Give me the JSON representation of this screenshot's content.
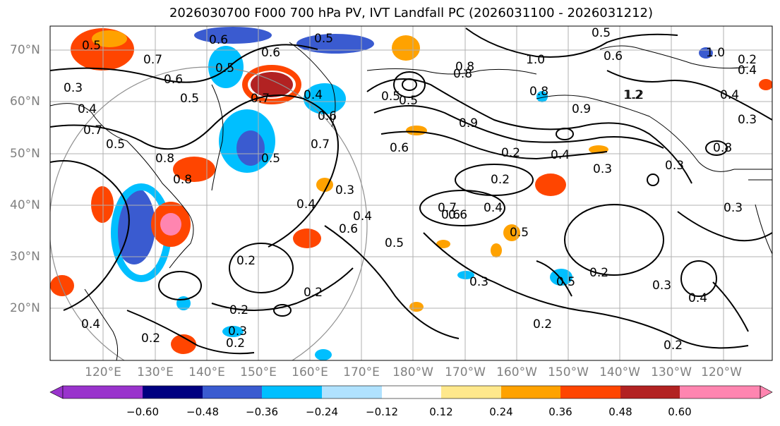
{
  "title": "2026030700 F000 700 hPa PV, IVT Landfall PC (2026031100 - 2026031212)",
  "lat_labels": [
    "70°N",
    "60°N",
    "50°N",
    "40°N",
    "30°N",
    "20°N"
  ],
  "lon_labels": [
    "120°E",
    "130°E",
    "140°E",
    "150°E",
    "160°E",
    "170°E",
    "180°W",
    "170°W",
    "160°W",
    "150°W",
    "140°W",
    "130°W",
    "120°W"
  ],
  "colorbar": {
    "ticks": [
      "−0.60",
      "−0.48",
      "−0.36",
      "−0.24",
      "−0.12",
      "0.12",
      "0.24",
      "0.36",
      "0.48",
      "0.60"
    ],
    "colors": [
      "#9933cc",
      "#000080",
      "#3a5bd0",
      "#00bfff",
      "#b0e2ff",
      "#ffffff",
      "#ffe88c",
      "#ffa200",
      "#ff4500",
      "#b22222",
      "#ff85b0"
    ]
  },
  "contour_labels": [
    "0.5",
    "0.7",
    "0.3",
    "0.4",
    "0.6",
    "0.5",
    "0.6",
    "0.5",
    "0.5",
    "0.6",
    "0.7",
    "0.5",
    "0.8",
    "0.7",
    "0.4",
    "0.6",
    "0.5",
    "0.8",
    "0.7",
    "0.5",
    "0.4",
    "0.3",
    "0.2",
    "0.2",
    "0.2",
    "0.3",
    "0.4",
    "0.5",
    "0.6",
    "0.2",
    "0.2",
    "0.4",
    "0.2",
    "0.2",
    "1.0",
    "0.8",
    "0.5",
    "0.6",
    "0.8",
    "1.2",
    "0.9",
    "0.8",
    "0.6",
    "0.3",
    "0.4",
    "0.3",
    "0.2",
    "0.7",
    "0.6",
    "0.4",
    "0.3",
    "0.5",
    "0.4",
    "0.2",
    "0.3",
    "0.4",
    "0.2",
    "0.5",
    "1.0",
    "0.4",
    "0.2",
    "0.6",
    "0.3",
    "0.8",
    "0.3",
    "0.5",
    "1.2",
    "0.9"
  ]
}
